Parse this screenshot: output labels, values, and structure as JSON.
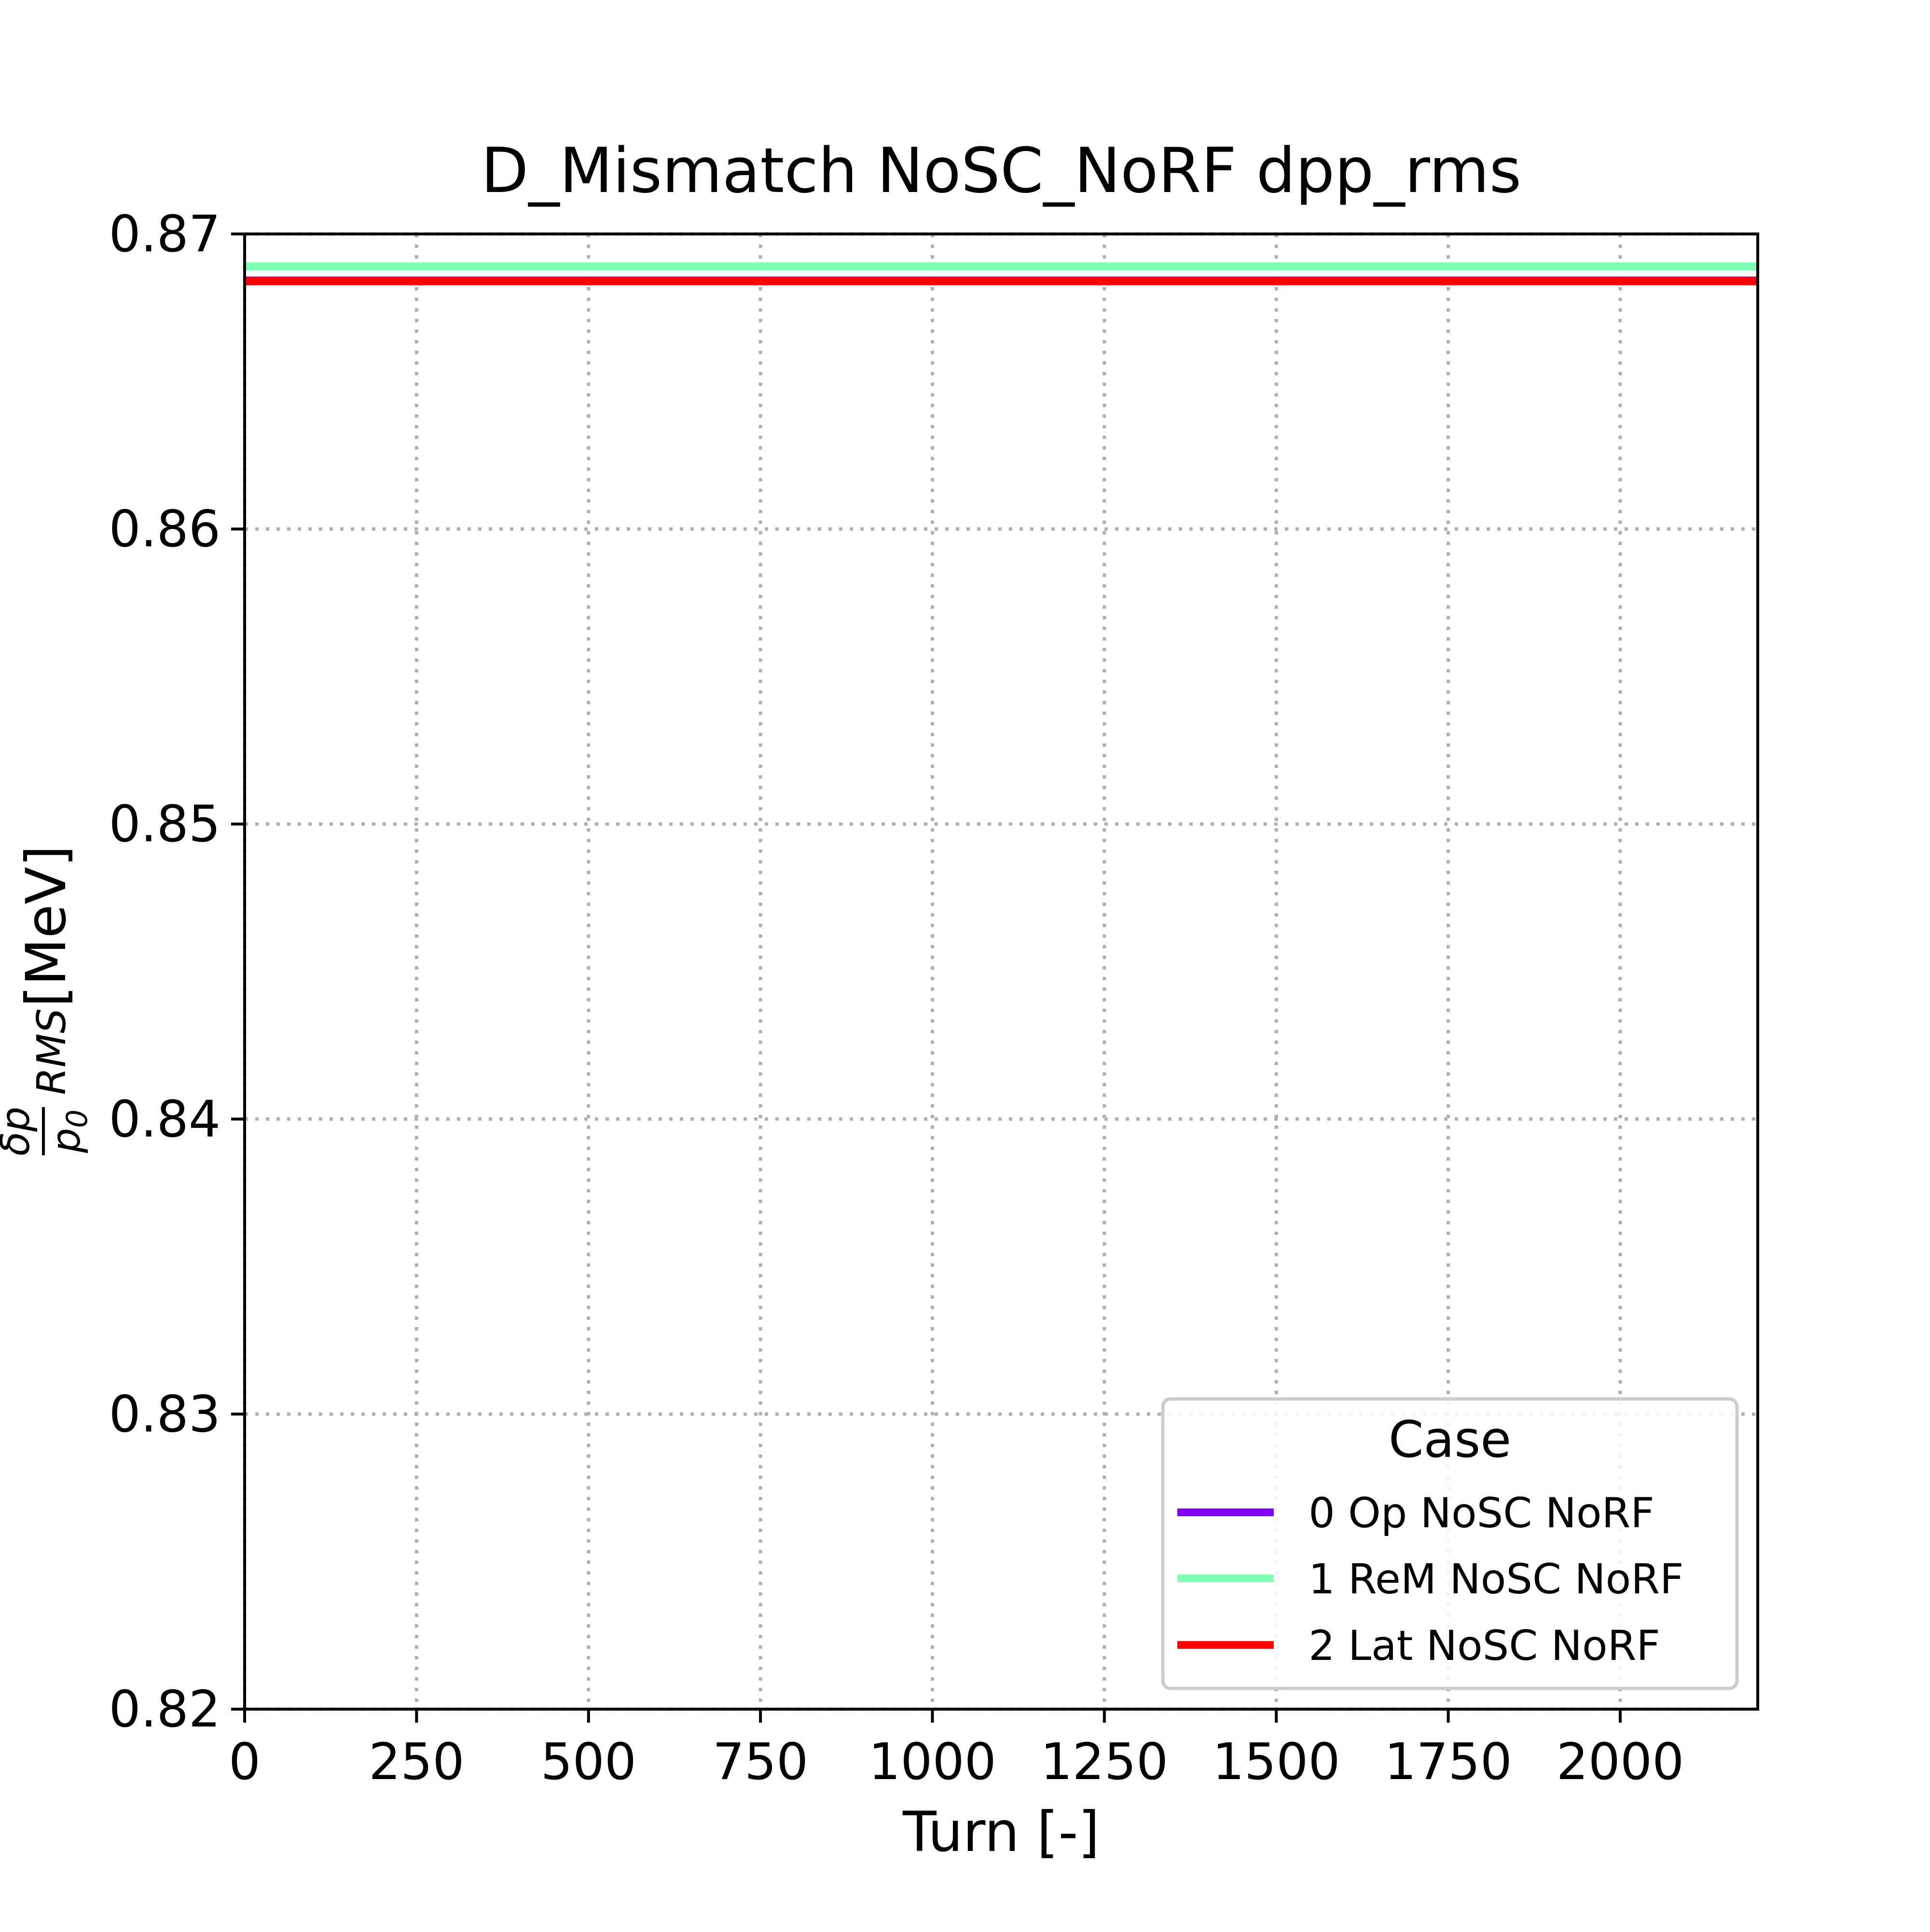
{
  "chart_data": {
    "type": "line",
    "title": "D_Mismatch NoSC_NoRF dpp_rms",
    "xlabel": "Turn [-]",
    "ylabel_main": "δp",
    "ylabel_denominator": "p",
    "ylabel_denominator_subscript": "0",
    "ylabel_subscript": "RMS",
    "ylabel_unit": "[MeV]",
    "xlim": [
      0,
      2200
    ],
    "ylim": [
      0.82,
      0.87
    ],
    "xticks": [
      0,
      250,
      500,
      750,
      1000,
      1250,
      1500,
      1750,
      2000
    ],
    "xtick_labels": [
      "0",
      "250",
      "500",
      "750",
      "1000",
      "1250",
      "1500",
      "1750",
      "2000"
    ],
    "yticks": [
      0.82,
      0.83,
      0.84,
      0.85,
      0.86,
      0.87
    ],
    "ytick_labels": [
      "0.82",
      "0.83",
      "0.84",
      "0.85",
      "0.86",
      "0.87"
    ],
    "grid": true,
    "legend": {
      "title": "Case",
      "placement": "lower-right"
    },
    "series": [
      {
        "name": "0 Op NoSC NoRF",
        "color": "#8000ff",
        "x": [
          0,
          2200
        ],
        "values": [
          0.8685,
          0.8685
        ]
      },
      {
        "name": "1 ReM NoSC NoRF",
        "color": "#80ffb4",
        "x": [
          0,
          2200
        ],
        "values": [
          0.8689,
          0.8689
        ]
      },
      {
        "name": "2 Lat NoSC NoRF",
        "color": "#ff0000",
        "x": [
          0,
          2200
        ],
        "values": [
          0.8684,
          0.8684
        ]
      }
    ]
  }
}
